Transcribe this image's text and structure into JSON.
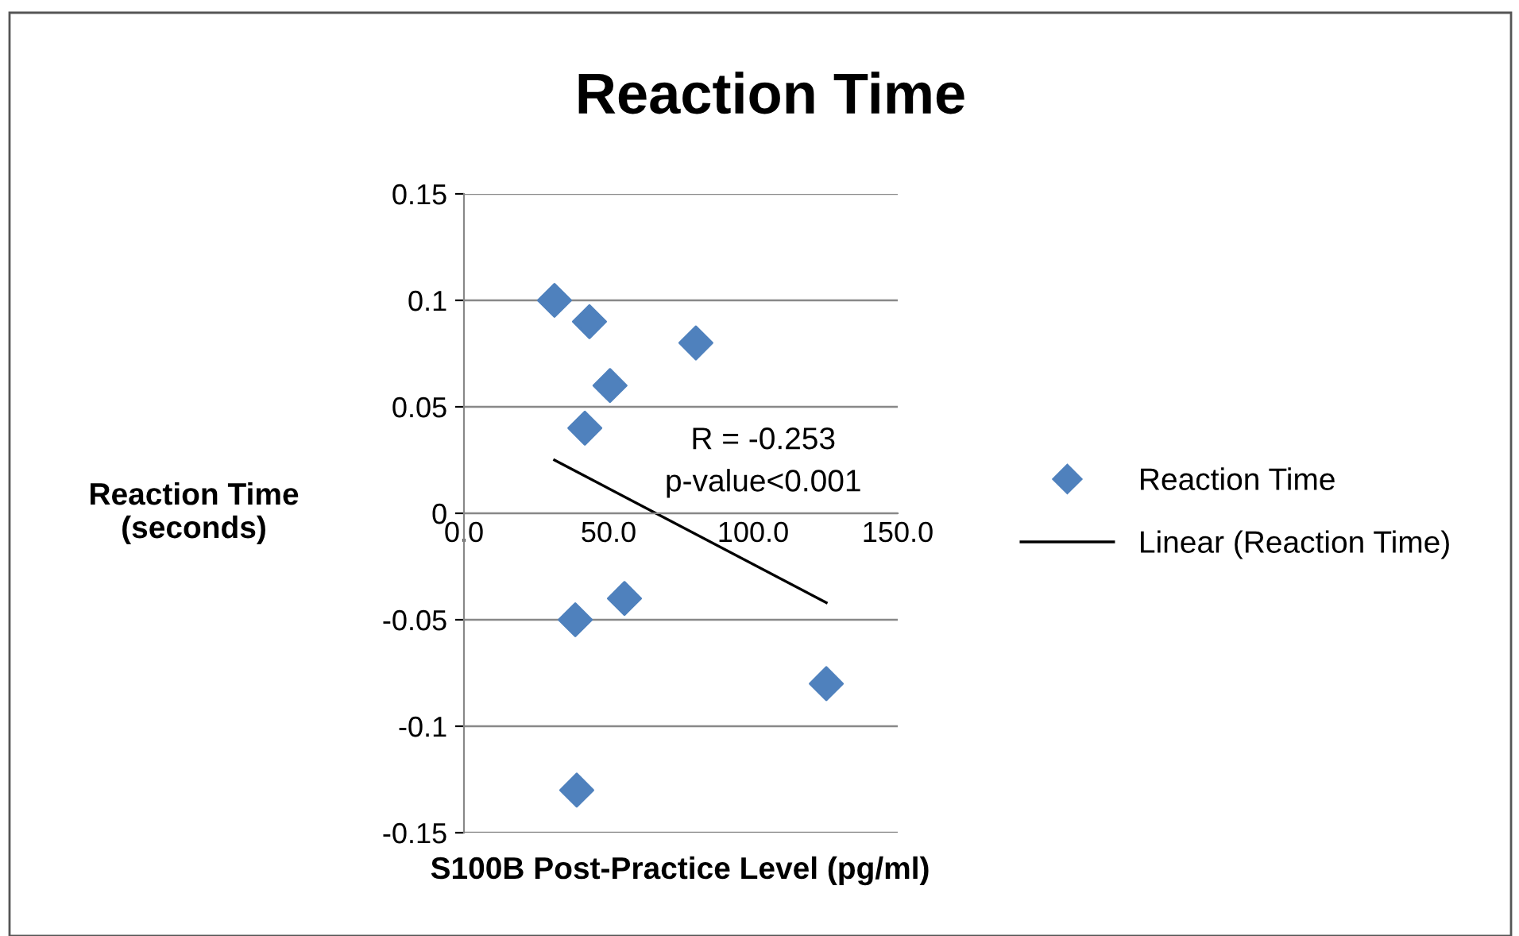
{
  "chart_data": {
    "type": "scatter",
    "title": "Reaction Time",
    "xlabel": "S100B Post-Practice Level (pg/ml)",
    "ylabel": "Reaction Time\n(seconds)",
    "series": [
      {
        "name": "Reaction Time",
        "color": "#4f81bd",
        "marker": "diamond",
        "x": [
          31.3,
          43.4,
          80.2,
          50.5,
          41.8,
          55.5,
          38.5,
          125.3,
          39.0
        ],
        "values": [
          0.1,
          0.09,
          0.08,
          0.06,
          0.04,
          -0.04,
          -0.05,
          -0.08,
          -0.13
        ]
      },
      {
        "name": "Linear (Reaction Time)",
        "type": "line",
        "color": "#000000",
        "marker": "none",
        "line_style": "solid",
        "x": [
          31.3,
          125.3
        ],
        "values": [
          0.025,
          -0.042
        ]
      }
    ],
    "annotations": [
      "R = -0.253\np-value<0.001"
    ],
    "xlim": [
      0,
      150
    ],
    "xticks": [
      {
        "value": 0,
        "label": "0.0"
      },
      {
        "value": 50,
        "label": "50.0"
      },
      {
        "value": 100,
        "label": "100.0"
      },
      {
        "value": 150,
        "label": "150.0"
      }
    ],
    "ylim": [
      -0.15,
      0.15
    ],
    "yticks": [
      -0.15,
      -0.1,
      -0.05,
      0,
      0.05,
      0.1,
      0.15
    ],
    "grid": "y",
    "legend": "right"
  }
}
